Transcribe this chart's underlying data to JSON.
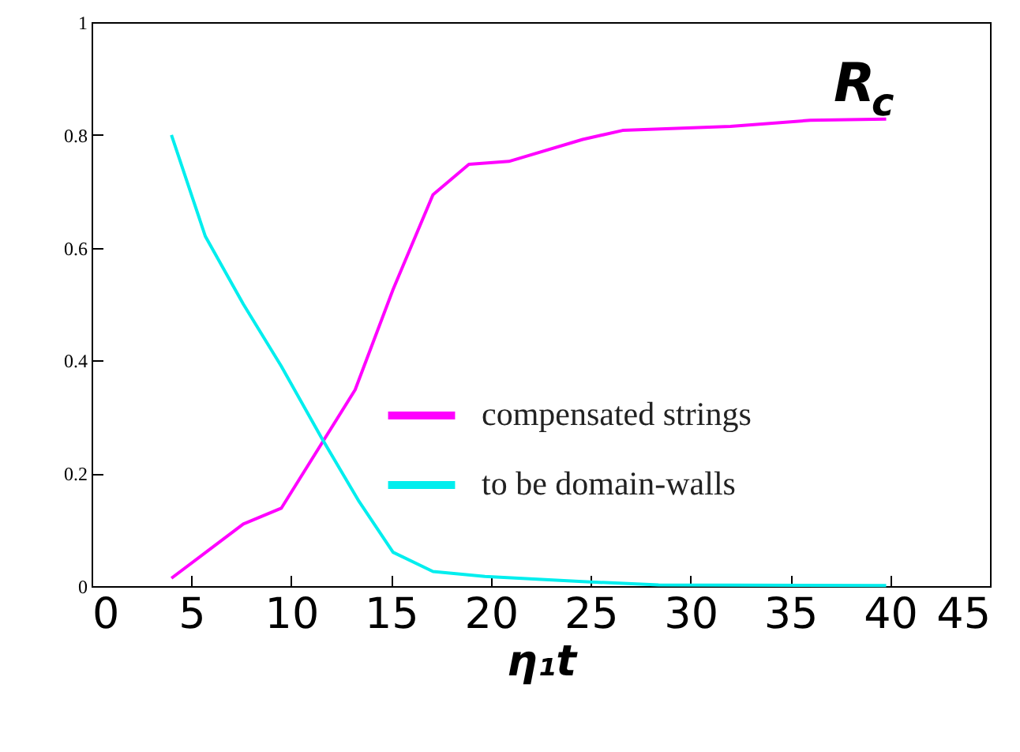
{
  "chart_data": {
    "type": "line",
    "xlabel": "η₁t",
    "annotations": [
      "R$_{c}$"
    ],
    "xlim": [
      0,
      45
    ],
    "xticks": [
      0,
      5,
      10,
      15,
      20,
      25,
      30,
      35,
      40,
      45
    ],
    "ylim": [
      0,
      1
    ],
    "yticks": [
      0,
      0.2,
      0.4,
      0.6,
      0.8,
      1
    ],
    "grid": false,
    "legend": "right",
    "marker": "none",
    "line_style": "solid",
    "series": [
      {
        "name": "compensated strings",
        "color": "#ff00ff",
        "x": [
          4,
          7.6,
          9.5,
          13.2,
          15.1,
          17.1,
          18.9,
          20.9,
          24.6,
          26.6,
          32,
          36,
          39.8
        ],
        "values": [
          0.014,
          0.11,
          0.138,
          0.348,
          0.526,
          0.694,
          0.748,
          0.753,
          0.792,
          0.808,
          0.815,
          0.826,
          0.828
        ]
      },
      {
        "name": "to be domain-walls",
        "color": "#00eeee",
        "x": [
          4,
          5.7,
          7.6,
          9.5,
          11.5,
          13.4,
          15.1,
          17.1,
          19.7,
          24.6,
          28.4,
          39.8
        ],
        "values": [
          0.8,
          0.62,
          0.5,
          0.39,
          0.264,
          0.15,
          0.06,
          0.026,
          0.017,
          0.008,
          0.002,
          0.001
        ]
      }
    ]
  }
}
